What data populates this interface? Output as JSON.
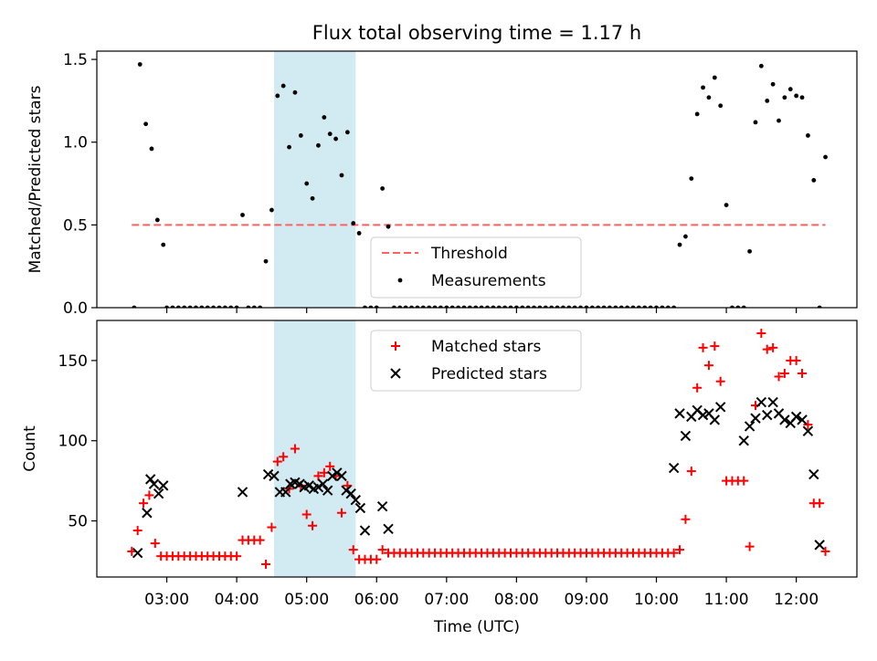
{
  "chart_data": [
    {
      "type": "scatter",
      "title": "Flux total observing time = 1.17 h",
      "xlabel": "",
      "ylabel": "Matched/Predicted stars",
      "ylim": [
        0,
        1.55
      ],
      "yticks": [
        {
          "v": 0,
          "label": "0.0"
        },
        {
          "v": 0.5,
          "label": "0.5"
        },
        {
          "v": 1.0,
          "label": "1.0"
        },
        {
          "v": 1.5,
          "label": "1.5"
        }
      ],
      "highlight_span": {
        "start": "04:32",
        "end": "05:42",
        "color": "#add8e6"
      },
      "legend": {
        "position": "lower-center",
        "entries": [
          "Threshold",
          "Measurements"
        ]
      },
      "threshold": {
        "name": "Threshold",
        "y": 0.5,
        "x_start": "02:30",
        "x_end": "12:25",
        "color": "#ff6060"
      },
      "series": [
        {
          "name": "Measurements",
          "color": "#000000",
          "x": [
            "02:32",
            "02:37",
            "02:42",
            "02:47",
            "02:52",
            "02:57",
            "03:00",
            "03:05",
            "03:10",
            "03:15",
            "03:20",
            "03:25",
            "03:30",
            "03:35",
            "03:40",
            "03:45",
            "03:50",
            "03:55",
            "04:00",
            "04:05",
            "04:10",
            "04:15",
            "04:20",
            "04:25",
            "04:30",
            "04:35",
            "04:40",
            "04:45",
            "04:50",
            "04:55",
            "05:00",
            "05:05",
            "05:10",
            "05:15",
            "05:20",
            "05:25",
            "05:30",
            "05:35",
            "05:40",
            "05:45",
            "05:50",
            "05:55",
            "06:00",
            "06:05",
            "06:10",
            "06:15",
            "06:20",
            "06:25",
            "06:30",
            "06:35",
            "06:40",
            "06:45",
            "06:50",
            "06:55",
            "07:00",
            "07:05",
            "07:10",
            "07:15",
            "07:20",
            "07:25",
            "07:30",
            "07:35",
            "07:40",
            "07:45",
            "07:50",
            "07:55",
            "08:00",
            "08:05",
            "08:10",
            "08:15",
            "08:20",
            "08:25",
            "08:30",
            "08:35",
            "08:40",
            "08:45",
            "08:50",
            "08:55",
            "09:00",
            "09:05",
            "09:10",
            "09:15",
            "09:20",
            "09:25",
            "09:30",
            "09:35",
            "09:40",
            "09:45",
            "09:50",
            "09:55",
            "10:00",
            "10:05",
            "10:10",
            "10:15",
            "10:20",
            "10:25",
            "10:30",
            "10:35",
            "10:40",
            "10:45",
            "10:50",
            "10:55",
            "11:00",
            "11:05",
            "11:10",
            "11:15",
            "11:20",
            "11:25",
            "11:30",
            "11:35",
            "11:40",
            "11:45",
            "11:50",
            "11:55",
            "12:00",
            "12:05",
            "12:10",
            "12:15",
            "12:20",
            "12:25"
          ],
          "y": [
            0,
            1.47,
            1.11,
            0.96,
            0.53,
            0.38,
            0,
            0,
            0,
            0,
            0,
            0,
            0,
            0,
            0,
            0,
            0,
            0,
            0,
            0.56,
            0,
            0,
            0,
            0.28,
            0.59,
            1.28,
            1.34,
            0.97,
            1.3,
            1.04,
            0.75,
            0.66,
            0.98,
            1.15,
            1.05,
            1.02,
            0.8,
            1.06,
            0.51,
            0.45,
            0,
            0,
            0,
            0.72,
            0.49,
            0,
            0,
            0,
            0,
            0,
            0,
            0,
            0,
            0,
            0,
            0,
            0,
            0,
            0,
            0,
            0,
            0,
            0,
            0,
            0,
            0,
            0,
            0,
            0,
            0,
            0,
            0,
            0,
            0,
            0,
            0,
            0,
            0,
            0,
            0,
            0,
            0,
            0,
            0,
            0,
            0,
            0,
            0,
            0,
            0,
            0,
            0,
            0,
            0,
            0.38,
            0.43,
            0.78,
            1.17,
            1.33,
            1.27,
            1.39,
            1.22,
            0.62,
            0,
            0,
            0,
            0.34,
            1.12,
            1.46,
            1.25,
            1.35,
            1.13,
            1.27,
            1.32,
            1.28,
            1.27,
            1.04,
            0.77,
            0,
            0.91
          ]
        }
      ]
    },
    {
      "type": "scatter",
      "title": "",
      "xlabel": "Time (UTC)",
      "ylabel": "Count",
      "ylim": [
        15,
        175
      ],
      "yticks": [
        {
          "v": 50,
          "label": "50"
        },
        {
          "v": 100,
          "label": "100"
        },
        {
          "v": 150,
          "label": "150"
        }
      ],
      "xticks": [
        "03:00",
        "04:00",
        "05:00",
        "06:00",
        "07:00",
        "08:00",
        "09:00",
        "10:00",
        "11:00",
        "12:00"
      ],
      "xlim": [
        "02:00",
        "12:52"
      ],
      "highlight_span": {
        "start": "04:32",
        "end": "05:42",
        "color": "#add8e6"
      },
      "legend": {
        "position": "upper-center",
        "entries": [
          "Matched stars",
          "Predicted stars"
        ]
      },
      "series": [
        {
          "name": "Matched stars",
          "marker": "plus",
          "color": "#ff0000",
          "x": [
            "02:30",
            "02:35",
            "02:40",
            "02:45",
            "02:50",
            "02:55",
            "03:00",
            "03:05",
            "03:10",
            "03:15",
            "03:20",
            "03:25",
            "03:30",
            "03:35",
            "03:40",
            "03:45",
            "03:50",
            "03:55",
            "04:00",
            "04:05",
            "04:10",
            "04:15",
            "04:20",
            "04:25",
            "04:30",
            "04:35",
            "04:40",
            "04:45",
            "04:50",
            "04:55",
            "05:00",
            "05:05",
            "05:10",
            "05:15",
            "05:20",
            "05:25",
            "05:30",
            "05:35",
            "05:40",
            "05:45",
            "05:50",
            "05:55",
            "06:00",
            "06:05",
            "06:10",
            "06:15",
            "06:20",
            "06:25",
            "06:30",
            "06:35",
            "06:40",
            "06:45",
            "06:50",
            "06:55",
            "07:00",
            "07:05",
            "07:10",
            "07:15",
            "07:20",
            "07:25",
            "07:30",
            "07:35",
            "07:40",
            "07:45",
            "07:50",
            "07:55",
            "08:00",
            "08:05",
            "08:10",
            "08:15",
            "08:20",
            "08:25",
            "08:30",
            "08:35",
            "08:40",
            "08:45",
            "08:50",
            "08:55",
            "09:00",
            "09:05",
            "09:10",
            "09:15",
            "09:20",
            "09:25",
            "09:30",
            "09:35",
            "09:40",
            "09:45",
            "09:50",
            "09:55",
            "10:00",
            "10:05",
            "10:10",
            "10:15",
            "10:20",
            "10:25",
            "10:30",
            "10:35",
            "10:40",
            "10:45",
            "10:50",
            "10:55",
            "11:00",
            "11:05",
            "11:10",
            "11:15",
            "11:20",
            "11:25",
            "11:30",
            "11:35",
            "11:40",
            "11:45",
            "11:50",
            "11:55",
            "12:00",
            "12:05",
            "12:10",
            "12:15",
            "12:20",
            "12:25"
          ],
          "y": [
            31,
            44,
            61,
            66,
            36,
            28,
            28,
            28,
            28,
            28,
            28,
            28,
            28,
            28,
            28,
            28,
            28,
            28,
            28,
            38,
            38,
            38,
            38,
            23,
            46,
            87,
            90,
            70,
            95,
            72,
            54,
            47,
            78,
            80,
            84,
            78,
            55,
            72,
            32,
            26,
            26,
            26,
            26,
            32,
            30,
            30,
            30,
            30,
            30,
            30,
            30,
            30,
            30,
            30,
            30,
            30,
            30,
            30,
            30,
            30,
            30,
            30,
            30,
            30,
            30,
            30,
            30,
            30,
            30,
            30,
            30,
            30,
            30,
            30,
            30,
            30,
            30,
            30,
            30,
            30,
            30,
            30,
            30,
            30,
            30,
            30,
            30,
            30,
            30,
            30,
            30,
            30,
            30,
            30,
            32,
            51,
            81,
            133,
            158,
            147,
            159,
            137,
            75,
            75,
            75,
            75,
            34,
            122,
            167,
            157,
            158,
            140,
            142,
            150,
            150,
            142,
            110,
            61,
            61,
            31
          ]
        },
        {
          "name": "Predicted stars",
          "marker": "x",
          "color": "#000000",
          "x": [
            "02:35",
            "02:43",
            "02:46",
            "02:49",
            "02:53",
            "02:57",
            "04:05",
            "04:27",
            "04:32",
            "04:37",
            "04:42",
            "04:46",
            "04:50",
            "04:54",
            "04:58",
            "05:02",
            "05:06",
            "05:10",
            "05:14",
            "05:18",
            "05:22",
            "05:26",
            "05:30",
            "05:34",
            "05:38",
            "05:42",
            "05:46",
            "05:50",
            "06:05",
            "06:10",
            "10:15",
            "10:20",
            "10:25",
            "10:30",
            "10:35",
            "10:40",
            "10:45",
            "10:50",
            "10:55",
            "11:15",
            "11:20",
            "11:25",
            "11:30",
            "11:35",
            "11:40",
            "11:45",
            "11:50",
            "11:55",
            "12:00",
            "12:05",
            "12:10",
            "12:15",
            "12:20"
          ],
          "y": [
            30,
            55,
            76,
            73,
            67,
            72,
            68,
            79,
            78,
            68,
            68,
            73,
            74,
            73,
            71,
            72,
            70,
            71,
            73,
            69,
            78,
            80,
            78,
            69,
            67,
            63,
            58,
            44,
            59,
            45,
            83,
            117,
            103,
            115,
            119,
            116,
            117,
            113,
            121,
            100,
            109,
            114,
            124,
            116,
            124,
            117,
            113,
            111,
            115,
            113,
            106,
            79,
            35
          ]
        }
      ]
    }
  ]
}
